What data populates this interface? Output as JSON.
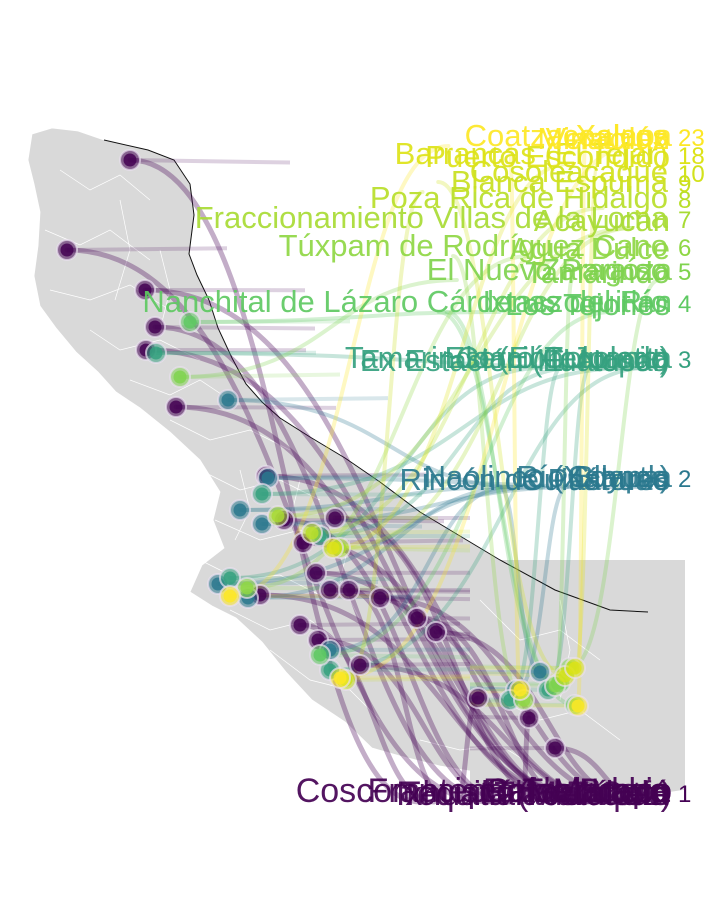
{
  "figure": {
    "colors": {
      "background": "#ffffff",
      "land": "#d9d9d9",
      "borders": "#ffffff",
      "coast": "#111111",
      "tier_1": "#440154",
      "tier_2": "#2a788e",
      "tier_3": "#35a17f",
      "tier_4": "#5ec962",
      "tier_5": "#7fd34e",
      "tier_6": "#8fd744",
      "tier_7": "#a8db34",
      "tier_8": "#b8de29",
      "tier_9": "#c8e020",
      "tier_10": "#d2e21b",
      "tier_11": "#dde318",
      "tier_12": "#fde725"
    }
  },
  "tiers": [
    {
      "id": "t1",
      "rank_label": "1",
      "color_key": "tier_1",
      "place_names": [
        "Francisco I. Madero",
        "Tlacotalpan",
        "Rafael Lucio",
        "Totutla",
        "Tezonapa",
        "Tequila (Martínez)",
        "Coscomatepec de Bravo",
        "Ixhuatlán del Café",
        "Calcahualco"
      ]
    },
    {
      "id": "t2",
      "rank_label": "2",
      "color_key": "tier_2",
      "place_names": [
        "Río Blanco",
        "Rincón de Pastores",
        "Coyutla",
        "Cuitláhuac",
        "Naolinco (Xalapa)"
      ]
    },
    {
      "id": "t3",
      "rank_label": "3",
      "color_key": "tier_3",
      "place_names": [
        "Cerro Colorado",
        "Ex Estación (El Nopal)",
        "Estación Juanita",
        "Huatusco",
        "Tamarindo (El Tecolote)"
      ]
    },
    {
      "id": "t4",
      "rank_label": "4",
      "color_key": "tier_4",
      "place_names": [
        "Nanchital de Lázaro Cárdenas del Río",
        "Los Tejones",
        "Ixtaczoquitlán"
      ]
    },
    {
      "id": "t5",
      "rank_label": "5",
      "color_key": "tier_5",
      "place_names": [
        "El Nuevo Paraíso",
        "Tamarindo",
        "Zaragoza"
      ]
    },
    {
      "id": "t6",
      "rank_label": "6",
      "color_key": "tier_6",
      "place_names": [
        "Túxpam de Rodríguez Cano",
        "Agua Dulce"
      ]
    },
    {
      "id": "t7",
      "rank_label": "7",
      "color_key": "tier_7",
      "place_names": [
        "Fraccionamiento Villas de la Loma",
        "Acayucan"
      ]
    },
    {
      "id": "t8",
      "rank_label": "8",
      "color_key": "tier_8",
      "place_names": [
        "Poza Rica de Hidalgo"
      ]
    },
    {
      "id": "t9",
      "rank_label": "9",
      "color_key": "tier_9",
      "place_names": [
        "Blanca Espuma"
      ]
    },
    {
      "id": "t10",
      "rank_label": "10",
      "color_key": "tier_10",
      "place_names": [
        "Cosoleacaque"
      ]
    },
    {
      "id": "t18",
      "rank_label": "18",
      "color_key": "tier_11",
      "place_names": [
        "Barrancas (El Tejar)",
        "Puerto Escondido"
      ]
    },
    {
      "id": "t23",
      "rank_label": "23",
      "color_key": "tier_12",
      "place_names": [
        "Coatzacoalcos",
        "Minatitlán",
        "Xalapa",
        "Veracruz"
      ]
    }
  ]
}
